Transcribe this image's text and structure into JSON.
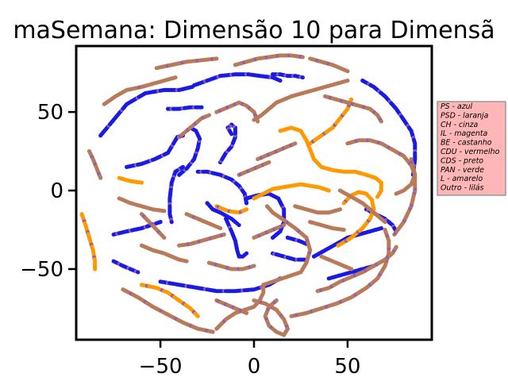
{
  "chart_data": {
    "type": "scatter",
    "title": "maSemana: Dimensão 10 para Dimensã",
    "xlabel": "",
    "ylabel": "",
    "xlim": [
      -95,
      95
    ],
    "ylim": [
      -95,
      92
    ],
    "xticks": [
      {
        "value": -50,
        "label": "−50"
      },
      {
        "value": 0,
        "label": "0"
      },
      {
        "value": 50,
        "label": "50"
      }
    ],
    "yticks": [
      {
        "value": 50,
        "label": "50"
      },
      {
        "value": 0,
        "label": "0"
      },
      {
        "value": -50,
        "label": "−50"
      }
    ],
    "grid": false,
    "legend": {
      "placement": "right, outside",
      "background": "#ffb6b6",
      "entries": [
        "PS - azul",
        "PSD - laranja",
        "CH - cinza",
        "IL - magenta",
        "BE - castanho",
        "CDU - vermelho",
        "CDS - preto",
        "PAN - verde",
        "L - amarelo",
        "Outro - lilás"
      ]
    },
    "colors": {
      "blue": "#1a1ae6",
      "orange": "#ff9900",
      "brown": "#b97a5a",
      "purple": "#8a5fb0"
    },
    "series": [
      {
        "color": "blue",
        "x": [
          -82,
          -75,
          -68,
          -58,
          -48,
          -40,
          -33
        ],
        "y": [
          35,
          45,
          55,
          62,
          64,
          64,
          66
        ]
      },
      {
        "color": "blue",
        "x": [
          -32,
          -25,
          -18,
          -10,
          -3,
          3,
          10,
          14
        ],
        "y": [
          67,
          70,
          73,
          74,
          74,
          73,
          72,
          70
        ]
      },
      {
        "color": "blue",
        "x": [
          -68,
          -60,
          -53,
          -46,
          -43,
          -41,
          -38
        ],
        "y": [
          15,
          17,
          20,
          24,
          30,
          34,
          35
        ]
      },
      {
        "color": "blue",
        "x": [
          -40,
          -36,
          -32,
          -30,
          -29,
          -31,
          -34
        ],
        "y": [
          10,
          14,
          20,
          27,
          33,
          38,
          40
        ]
      },
      {
        "color": "blue",
        "x": [
          -38,
          -42,
          -44,
          -45,
          -45,
          -44
        ],
        "y": [
          15,
          12,
          5,
          -5,
          -15,
          -20
        ]
      },
      {
        "color": "blue",
        "x": [
          -30,
          -25,
          -18,
          -12,
          -8,
          -5,
          -4
        ],
        "y": [
          12,
          12,
          10,
          7,
          3,
          -2,
          -8
        ]
      },
      {
        "color": "blue",
        "x": [
          -18,
          -15,
          -12,
          -10,
          -10,
          -12,
          -14,
          -12
        ],
        "y": [
          18,
          24,
          28,
          34,
          40,
          42,
          40,
          36
        ]
      },
      {
        "color": "blue",
        "x": [
          -25,
          -22,
          -18,
          -15,
          -12,
          -10,
          -8
        ],
        "y": [
          -8,
          -12,
          -14,
          -16,
          -18,
          -20,
          -22
        ]
      },
      {
        "color": "blue",
        "x": [
          -4,
          2,
          8,
          13,
          16,
          16,
          14,
          10
        ],
        "y": [
          -5,
          -3,
          -2,
          -5,
          -12,
          -20,
          -26,
          -30
        ]
      },
      {
        "color": "blue",
        "x": [
          -15,
          -12,
          -10,
          -9,
          -8,
          -6,
          -4
        ],
        "y": [
          -18,
          -26,
          -32,
          -38,
          -42,
          -42,
          -40
        ]
      },
      {
        "color": "blue",
        "x": [
          -50,
          -40,
          -30,
          -20,
          -10,
          0,
          8,
          14
        ],
        "y": [
          -58,
          -60,
          -62,
          -64,
          -64,
          -63,
          -60,
          -56
        ]
      },
      {
        "color": "blue",
        "x": [
          -75,
          -70,
          -66,
          -62
        ],
        "y": [
          -45,
          -48,
          -50,
          -52
        ]
      },
      {
        "color": "blue",
        "x": [
          -75,
          -68,
          -60,
          -55,
          -50
        ],
        "y": [
          -28,
          -26,
          -24,
          -22,
          -20
        ]
      },
      {
        "color": "blue",
        "x": [
          10,
          16,
          22,
          28
        ],
        "y": [
          -40,
          -42,
          -44,
          -44
        ]
      },
      {
        "color": "blue",
        "x": [
          32,
          38,
          44,
          50,
          56,
          62,
          68
        ],
        "y": [
          -42,
          -38,
          -34,
          -30,
          -28,
          -26,
          -24
        ]
      },
      {
        "color": "blue",
        "x": [
          40,
          46,
          52,
          58,
          64
        ],
        "y": [
          -56,
          -54,
          -52,
          -50,
          -48
        ]
      },
      {
        "color": "blue",
        "x": [
          18,
          24,
          28
        ],
        "y": [
          -30,
          -32,
          -34
        ]
      },
      {
        "color": "blue",
        "x": [
          58,
          64,
          70,
          76,
          80,
          84,
          86,
          86,
          85
        ],
        "y": [
          70,
          66,
          60,
          52,
          45,
          38,
          30,
          20,
          10
        ]
      },
      {
        "color": "blue",
        "x": [
          10,
          14,
          18,
          22,
          26
        ],
        "y": [
          74,
          74,
          73,
          73,
          72
        ]
      },
      {
        "color": "blue",
        "x": [
          -46,
          -40,
          -34,
          -28
        ],
        "y": [
          52,
          52,
          53,
          53
        ]
      },
      {
        "color": "blue",
        "x": [
          60,
          65,
          70,
          74,
          76
        ],
        "y": [
          -12,
          -15,
          -18,
          -22,
          -26
        ]
      },
      {
        "color": "orange",
        "x": [
          14,
          20,
          25,
          28,
          30,
          32,
          36,
          42,
          48,
          54,
          60,
          65,
          68,
          68,
          66
        ],
        "y": [
          38,
          40,
          38,
          32,
          26,
          20,
          15,
          13,
          12,
          12,
          10,
          8,
          5,
          0,
          -4
        ]
      },
      {
        "color": "orange",
        "x": [
          0,
          5,
          10,
          15,
          20,
          25,
          30,
          35,
          40
        ],
        "y": [
          -5,
          -2,
          1,
          2,
          3,
          4,
          3,
          2,
          0
        ]
      },
      {
        "color": "orange",
        "x": [
          45,
          52,
          58,
          62,
          64,
          63,
          60,
          56,
          52,
          48
        ],
        "y": [
          -35,
          -30,
          -24,
          -18,
          -12,
          -6,
          -2,
          -1,
          -3,
          -8
        ]
      },
      {
        "color": "orange",
        "x": [
          -92,
          -90,
          -88,
          -86,
          -85,
          -85
        ],
        "y": [
          -15,
          -22,
          -30,
          -38,
          -45,
          -50
        ]
      },
      {
        "color": "orange",
        "x": [
          -60,
          -52,
          -46,
          -40,
          -34,
          -30
        ],
        "y": [
          -60,
          -62,
          -65,
          -70,
          -75,
          -80
        ]
      },
      {
        "color": "orange",
        "x": [
          30,
          36,
          42,
          46,
          50,
          52
        ],
        "y": [
          30,
          35,
          40,
          46,
          52,
          58
        ]
      },
      {
        "color": "orange",
        "x": [
          -20,
          -14,
          -8,
          -4
        ],
        "y": [
          -10,
          -13,
          -14,
          -12
        ]
      },
      {
        "color": "orange",
        "x": [
          -72,
          -66,
          -60
        ],
        "y": [
          8,
          6,
          5
        ]
      },
      {
        "color": "brown",
        "x": [
          -20,
          -15,
          -10,
          -5,
          0,
          3,
          5,
          5,
          10,
          15,
          20,
          25,
          28,
          30,
          28,
          22,
          15,
          10,
          7
        ],
        "y": [
          -88,
          -82,
          -78,
          -76,
          -74,
          -70,
          -65,
          -60,
          -58,
          -56,
          -54,
          -52,
          -46,
          -38,
          -30,
          -24,
          -18,
          -14,
          -10
        ]
      },
      {
        "color": "brown",
        "x": [
          -70,
          -62,
          -54,
          -46,
          -38,
          -30,
          -22
        ],
        "y": [
          -63,
          -68,
          -74,
          -79,
          -84,
          -88,
          -90
        ]
      },
      {
        "color": "brown",
        "x": [
          0,
          6,
          12,
          16,
          18,
          16,
          12,
          8,
          6,
          8,
          12
        ],
        "y": [
          -70,
          -72,
          -76,
          -82,
          -88,
          -92,
          -90,
          -86,
          -80,
          -74,
          -70
        ]
      },
      {
        "color": "brown",
        "x": [
          20,
          28,
          36,
          44,
          52,
          60,
          66,
          70,
          72,
          72,
          70
        ],
        "y": [
          -80,
          -78,
          -75,
          -72,
          -68,
          -62,
          -56,
          -48,
          -40,
          -32,
          -25
        ]
      },
      {
        "color": "brown",
        "x": [
          34,
          40,
          46,
          52,
          58,
          64,
          70,
          74,
          76
        ],
        "y": [
          -64,
          -62,
          -58,
          -55,
          -52,
          -48,
          -44,
          -40,
          -36
        ]
      },
      {
        "color": "brown",
        "x": [
          75,
          80,
          84,
          86,
          86,
          84
        ],
        "y": [
          -28,
          -20,
          -10,
          0,
          10,
          20
        ]
      },
      {
        "color": "brown",
        "x": [
          -80,
          -74,
          -68,
          -60,
          -54,
          -48,
          -42
        ],
        "y": [
          55,
          60,
          64,
          66,
          68,
          70,
          72
        ]
      },
      {
        "color": "brown",
        "x": [
          -52,
          -44,
          -36,
          -28,
          -20
        ],
        "y": [
          78,
          80,
          82,
          83,
          84
        ]
      },
      {
        "color": "brown",
        "x": [
          -10,
          -4,
          2,
          8,
          14,
          20,
          26
        ],
        "y": [
          80,
          82,
          84,
          85,
          86,
          86,
          85
        ]
      },
      {
        "color": "brown",
        "x": [
          30,
          36,
          42,
          46,
          50
        ],
        "y": [
          84,
          82,
          80,
          78,
          76
        ]
      },
      {
        "color": "brown",
        "x": [
          38,
          44,
          50,
          56,
          62,
          66,
          68
        ],
        "y": [
          60,
          58,
          56,
          54,
          52,
          48,
          44
        ]
      },
      {
        "color": "brown",
        "x": [
          -20,
          -16,
          -12,
          -8,
          -4,
          0,
          2
        ],
        "y": [
          50,
          52,
          54,
          56,
          54,
          50,
          44
        ]
      },
      {
        "color": "brown",
        "x": [
          -40,
          -36,
          -32,
          -28,
          -24
        ],
        "y": [
          34,
          38,
          42,
          46,
          48
        ]
      },
      {
        "color": "brown",
        "x": [
          -72,
          -66,
          -60,
          -54,
          -48
        ],
        "y": [
          -5,
          -8,
          -10,
          -12,
          -13
        ]
      },
      {
        "color": "brown",
        "x": [
          -60,
          -54,
          -48,
          -44,
          -40,
          -36
        ],
        "y": [
          -35,
          -38,
          -40,
          -42,
          -44,
          -45
        ]
      },
      {
        "color": "brown",
        "x": [
          -40,
          -34,
          -28,
          -22,
          -16
        ],
        "y": [
          -35,
          -34,
          -32,
          -30,
          -28
        ]
      },
      {
        "color": "brown",
        "x": [
          -24,
          -18,
          -12,
          -6,
          0
        ],
        "y": [
          -46,
          -48,
          -50,
          -50,
          -48
        ]
      },
      {
        "color": "brown",
        "x": [
          0,
          4,
          8,
          12,
          16
        ],
        "y": [
          -30,
          -28,
          -26,
          -24,
          -22
        ]
      },
      {
        "color": "brown",
        "x": [
          2,
          6,
          10,
          14,
          18,
          22
        ],
        "y": [
          20,
          22,
          24,
          26,
          28,
          30
        ]
      },
      {
        "color": "brown",
        "x": [
          -8,
          -4,
          0,
          4,
          8
        ],
        "y": [
          10,
          12,
          14,
          16,
          18
        ]
      },
      {
        "color": "brown",
        "x": [
          22,
          28,
          34,
          40,
          46
        ],
        "y": [
          -10,
          -12,
          -14,
          -14,
          -12
        ]
      },
      {
        "color": "brown",
        "x": [
          30,
          36,
          42,
          48
        ],
        "y": [
          -20,
          -22,
          -24,
          -25
        ]
      },
      {
        "color": "brown",
        "x": [
          50,
          56,
          62,
          68,
          74,
          80,
          84,
          86,
          84,
          80,
          76
        ],
        "y": [
          30,
          32,
          32,
          30,
          26,
          22,
          16,
          10,
          4,
          0,
          -2
        ]
      },
      {
        "color": "brown",
        "x": [
          36,
          40,
          44,
          48,
          52
        ],
        "y": [
          -42,
          -44,
          -46,
          -48,
          -50
        ]
      },
      {
        "color": "brown",
        "x": [
          -88,
          -86,
          -84,
          -82
        ],
        "y": [
          25,
          20,
          14,
          8
        ]
      },
      {
        "color": "brown",
        "x": [
          -60,
          -56,
          -52,
          -48
        ],
        "y": [
          -15,
          -20,
          -25,
          -30
        ]
      },
      {
        "color": "brown",
        "x": [
          -20,
          -16,
          -12,
          -8,
          -4
        ],
        "y": [
          -70,
          -72,
          -74,
          -76,
          -78
        ]
      },
      {
        "color": "brown",
        "x": [
          46,
          52,
          58,
          62,
          66,
          70
        ],
        "y": [
          0,
          -4,
          -8,
          -12,
          -16,
          -20
        ]
      },
      {
        "color": "brown",
        "x": [
          20,
          26,
          32,
          38,
          44,
          50
        ],
        "y": [
          60,
          62,
          64,
          66,
          68,
          70
        ]
      },
      {
        "color": "brown",
        "x": [
          0,
          4,
          8,
          12,
          16,
          20
        ],
        "y": [
          45,
          48,
          52,
          56,
          58,
          60
        ]
      },
      {
        "color": "brown",
        "x": [
          -36,
          -30,
          -26,
          -22,
          -18
        ],
        "y": [
          -15,
          -18,
          -20,
          -22,
          -24
        ]
      }
    ]
  }
}
